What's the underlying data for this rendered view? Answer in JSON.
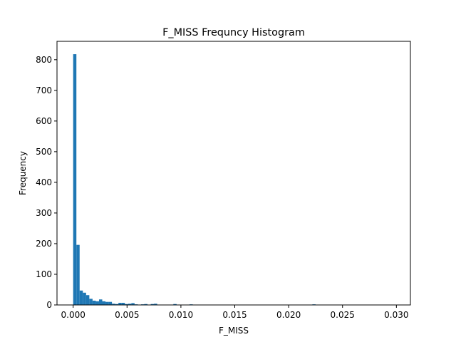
{
  "chart_data": {
    "type": "bar",
    "title": "F_MISS Frequncy Histogram",
    "xlabel": "F_MISS",
    "ylabel": "Frequency",
    "xlim": [
      -0.0015,
      0.0313
    ],
    "ylim": [
      0,
      860
    ],
    "xticks": [
      0.0,
      0.005,
      0.01,
      0.015,
      0.02,
      0.025,
      0.03
    ],
    "xtick_labels": [
      "0.000",
      "0.005",
      "0.010",
      "0.015",
      "0.020",
      "0.025",
      "0.030"
    ],
    "yticks": [
      0,
      100,
      200,
      300,
      400,
      500,
      600,
      700,
      800
    ],
    "ytick_labels": [
      "0",
      "100",
      "200",
      "300",
      "400",
      "500",
      "600",
      "700",
      "800"
    ],
    "bar_color": "#1f77b4",
    "bin_start": 0.0,
    "bin_width": 0.0003,
    "counts": [
      818,
      196,
      47,
      40,
      32,
      20,
      14,
      12,
      18,
      12,
      10,
      10,
      4,
      3,
      7,
      7,
      3,
      4,
      6,
      2,
      0,
      2,
      3,
      0,
      3,
      4,
      0,
      0,
      0,
      0,
      0,
      3,
      0,
      0,
      0,
      0,
      2,
      0,
      0,
      0,
      0,
      0,
      0,
      0,
      0,
      0,
      0,
      0,
      0,
      0,
      0,
      0,
      0,
      0,
      0,
      0,
      0,
      0,
      0,
      0,
      0,
      0,
      0,
      0,
      0,
      0,
      0,
      0,
      0,
      0,
      0,
      0,
      0,
      0,
      2,
      0,
      0,
      0,
      0,
      0,
      0,
      0,
      0,
      0,
      0,
      0,
      0,
      0,
      0,
      0,
      0,
      0,
      0,
      0,
      0,
      0,
      0,
      0,
      0,
      1
    ]
  }
}
